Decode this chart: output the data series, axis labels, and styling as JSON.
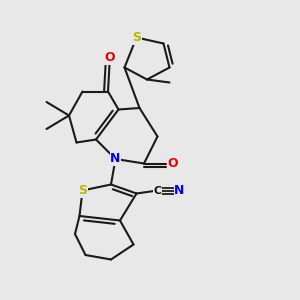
{
  "bg_color": "#e8e8e8",
  "bond_color": "#1a1a1a",
  "bond_width": 1.5,
  "dbo": 0.013,
  "atom_colors": {
    "S": "#b8b800",
    "N": "#0000ee",
    "O": "#ee0000"
  },
  "font_size": 9
}
